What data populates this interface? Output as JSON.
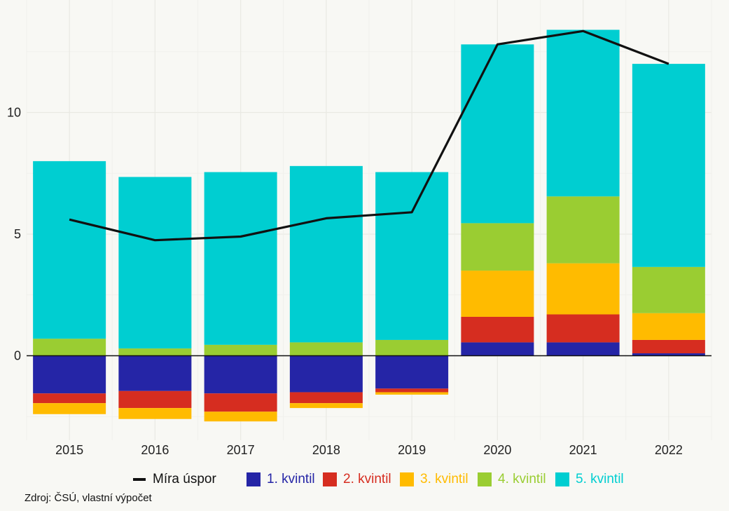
{
  "chart_data": {
    "type": "bar",
    "stacked": true,
    "categories": [
      "2015",
      "2016",
      "2017",
      "2018",
      "2019",
      "2020",
      "2021",
      "2022"
    ],
    "series": [
      {
        "name": "1. kvintil",
        "color": "#2525a6",
        "values": [
          -1.55,
          -1.45,
          -1.55,
          -1.5,
          -1.35,
          0.55,
          0.55,
          0.1
        ]
      },
      {
        "name": "2. kvintil",
        "color": "#d62d20",
        "values": [
          -0.4,
          -0.7,
          -0.75,
          -0.45,
          -0.15,
          1.05,
          1.15,
          0.55
        ]
      },
      {
        "name": "3. kvintil",
        "color": "#ffbb00",
        "values": [
          -0.45,
          -0.45,
          -0.4,
          -0.2,
          -0.1,
          1.9,
          2.1,
          1.1
        ]
      },
      {
        "name": "4. kvintil",
        "color": "#9acd32",
        "values": [
          0.7,
          0.3,
          0.45,
          0.55,
          0.65,
          1.95,
          2.75,
          1.9
        ]
      },
      {
        "name": "5. kvintil",
        "color": "#00ced1",
        "values": [
          7.3,
          7.05,
          7.1,
          7.25,
          6.9,
          7.35,
          6.85,
          8.35
        ]
      }
    ],
    "line": {
      "name": "Míra úspor",
      "color": "#111111",
      "values": [
        5.6,
        4.75,
        4.9,
        5.65,
        5.9,
        12.8,
        13.35,
        12.0
      ]
    },
    "yticks": [
      0,
      5,
      10
    ],
    "ylim": [
      -3.4,
      14.5
    ],
    "title": "",
    "xlabel": "",
    "ylabel": "",
    "source": "Zdroj: ČSÚ, vlastní výpočet"
  }
}
